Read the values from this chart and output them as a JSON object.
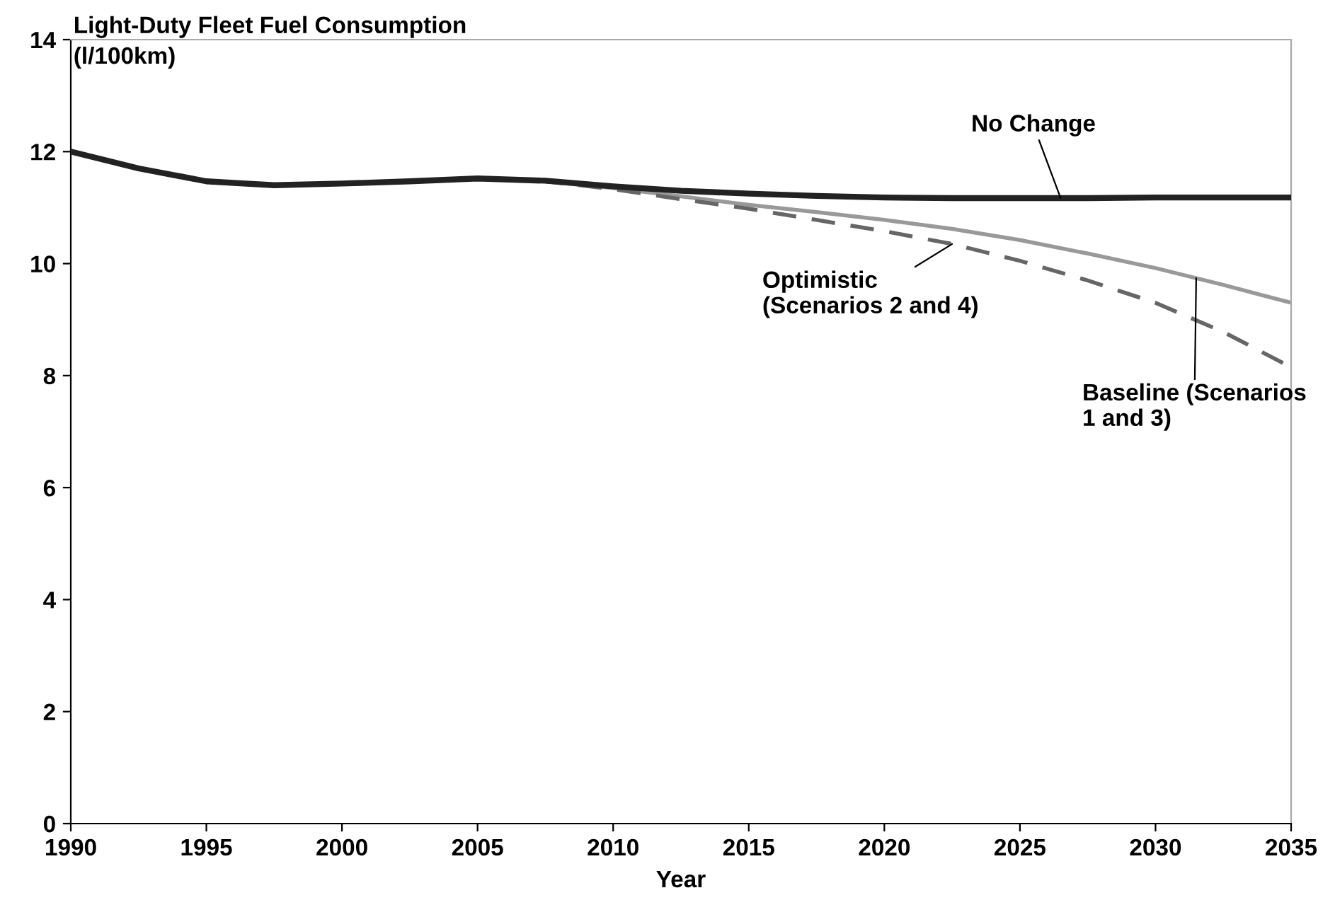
{
  "chart_data": {
    "type": "line",
    "ylabel": "Light-Duty Fleet Fuel Consumption\n(l/100km)",
    "xlabel": "Year",
    "x": [
      1990,
      1992.5,
      1995,
      1997.5,
      2000,
      2002.5,
      2005,
      2007.5,
      2010,
      2012.5,
      2015,
      2017.5,
      2020,
      2022.5,
      2025,
      2027.5,
      2030,
      2032.5,
      2035
    ],
    "series": [
      {
        "name": "No Change",
        "color": "#222222",
        "line_style": "solid",
        "values": [
          12.0,
          11.7,
          11.47,
          11.4,
          11.43,
          11.47,
          11.52,
          11.48,
          11.38,
          11.3,
          11.25,
          11.21,
          11.18,
          11.17,
          11.17,
          11.17,
          11.18,
          11.18,
          11.18
        ]
      },
      {
        "name": "Optimistic\n(Scenarios 2 and 4)",
        "color": "#666666",
        "line_style": "dashed",
        "values": [
          12.0,
          11.7,
          11.47,
          11.4,
          11.43,
          11.47,
          11.52,
          11.47,
          11.33,
          11.15,
          10.98,
          10.78,
          10.58,
          10.35,
          10.05,
          9.7,
          9.3,
          8.78,
          8.15
        ]
      },
      {
        "name": "Baseline (Scenarios\n1 and 3)",
        "color": "#999999",
        "line_style": "solid",
        "values": [
          12.0,
          11.7,
          11.47,
          11.4,
          11.43,
          11.47,
          11.52,
          11.47,
          11.35,
          11.2,
          11.05,
          10.92,
          10.78,
          10.62,
          10.42,
          10.18,
          9.92,
          9.62,
          9.3
        ]
      }
    ],
    "xlim": [
      1990,
      2035
    ],
    "xticks": [
      1990,
      1995,
      2000,
      2005,
      2010,
      2015,
      2020,
      2025,
      2030,
      2035
    ],
    "ylim": [
      0,
      14
    ],
    "yticks": [
      0,
      2,
      4,
      6,
      8,
      10,
      12,
      14
    ],
    "grid": false,
    "legend": false,
    "marker": "none"
  }
}
